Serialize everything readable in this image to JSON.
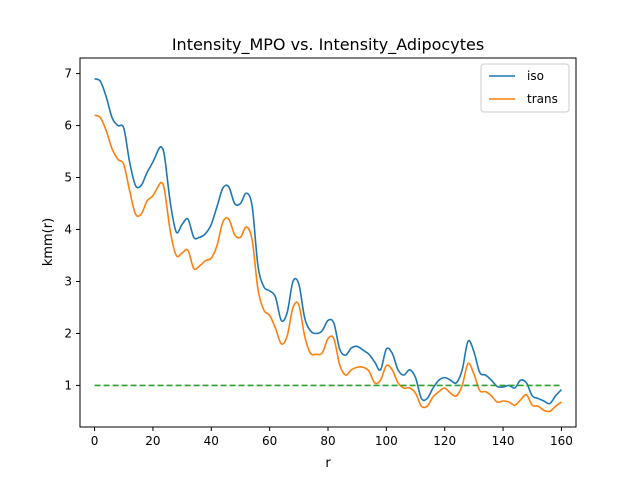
{
  "chart_data": {
    "type": "line",
    "title": "Intensity_MPO vs. Intensity_Adipocytes",
    "xlabel": "r",
    "ylabel": "kmm(r)",
    "xlim": [
      -5,
      165
    ],
    "ylim": [
      0.2,
      7.3
    ],
    "xticks": [
      0,
      20,
      40,
      60,
      80,
      100,
      120,
      140,
      160
    ],
    "yticks": [
      1,
      2,
      3,
      4,
      5,
      6,
      7
    ],
    "grid": false,
    "legend_position": "upper right",
    "colors": {
      "iso": "#1f77b4",
      "trans": "#ff7f0e",
      "reference": "#2ca02c"
    },
    "series": [
      {
        "name": "iso",
        "x": [
          0,
          2,
          4,
          6,
          8,
          10,
          12,
          14,
          16,
          18,
          20,
          22,
          23,
          24,
          26,
          28,
          30,
          32,
          34,
          36,
          38,
          40,
          42,
          44,
          46,
          48,
          50,
          52,
          54,
          56,
          58,
          60,
          62,
          64,
          66,
          68,
          70,
          72,
          74,
          76,
          78,
          80,
          82,
          84,
          86,
          88,
          90,
          92,
          94,
          96,
          98,
          100,
          102,
          104,
          106,
          108,
          110,
          112,
          114,
          116,
          118,
          120,
          122,
          124,
          126,
          128,
          130,
          132,
          134,
          136,
          138,
          140,
          142,
          144,
          146,
          148,
          150,
          152,
          154,
          156,
          158,
          160
        ],
        "y": [
          6.9,
          6.85,
          6.55,
          6.15,
          6.0,
          5.95,
          5.3,
          4.85,
          4.85,
          5.1,
          5.3,
          5.55,
          5.58,
          5.4,
          4.5,
          3.95,
          4.1,
          4.2,
          3.85,
          3.85,
          3.92,
          4.1,
          4.45,
          4.8,
          4.82,
          4.5,
          4.5,
          4.7,
          4.45,
          3.3,
          2.9,
          2.82,
          2.7,
          2.25,
          2.4,
          3.0,
          2.95,
          2.3,
          2.05,
          2.0,
          2.05,
          2.25,
          2.2,
          1.7,
          1.58,
          1.72,
          1.75,
          1.68,
          1.6,
          1.45,
          1.3,
          1.7,
          1.62,
          1.3,
          1.2,
          1.3,
          1.15,
          0.75,
          0.75,
          0.95,
          1.1,
          1.15,
          1.1,
          1.05,
          1.3,
          1.85,
          1.65,
          1.25,
          1.2,
          1.1,
          0.98,
          0.97,
          1.0,
          0.95,
          1.1,
          1.05,
          0.8,
          0.75,
          0.7,
          0.65,
          0.8,
          0.92
        ]
      },
      {
        "name": "trans",
        "x": [
          0,
          2,
          4,
          6,
          8,
          10,
          12,
          14,
          16,
          18,
          20,
          22,
          23,
          24,
          26,
          28,
          30,
          32,
          34,
          36,
          38,
          40,
          42,
          44,
          46,
          48,
          50,
          52,
          54,
          56,
          58,
          60,
          62,
          64,
          66,
          68,
          70,
          72,
          74,
          76,
          78,
          80,
          82,
          84,
          86,
          88,
          90,
          92,
          94,
          96,
          98,
          100,
          102,
          104,
          106,
          108,
          110,
          112,
          114,
          116,
          118,
          120,
          122,
          124,
          126,
          128,
          130,
          132,
          134,
          136,
          138,
          140,
          142,
          144,
          146,
          148,
          150,
          152,
          154,
          156,
          158,
          160
        ],
        "y": [
          6.2,
          6.15,
          5.9,
          5.55,
          5.35,
          5.25,
          4.75,
          4.3,
          4.3,
          4.55,
          4.65,
          4.85,
          4.9,
          4.75,
          3.95,
          3.5,
          3.55,
          3.6,
          3.25,
          3.3,
          3.4,
          3.45,
          3.7,
          4.15,
          4.2,
          3.9,
          3.85,
          4.05,
          3.8,
          2.85,
          2.45,
          2.35,
          2.1,
          1.8,
          1.95,
          2.5,
          2.55,
          1.95,
          1.62,
          1.6,
          1.62,
          1.9,
          1.9,
          1.4,
          1.2,
          1.3,
          1.35,
          1.35,
          1.28,
          1.05,
          1.1,
          1.38,
          1.3,
          1.05,
          0.95,
          0.95,
          0.85,
          0.6,
          0.6,
          0.78,
          0.88,
          0.95,
          0.85,
          0.8,
          1.0,
          1.42,
          1.22,
          0.9,
          0.88,
          0.8,
          0.68,
          0.7,
          0.68,
          0.62,
          0.72,
          0.82,
          0.62,
          0.6,
          0.52,
          0.5,
          0.6,
          0.68
        ]
      },
      {
        "x": [
          0,
          160
        ],
        "y": [
          1.0,
          1.0
        ],
        "style": "dashed"
      }
    ]
  }
}
